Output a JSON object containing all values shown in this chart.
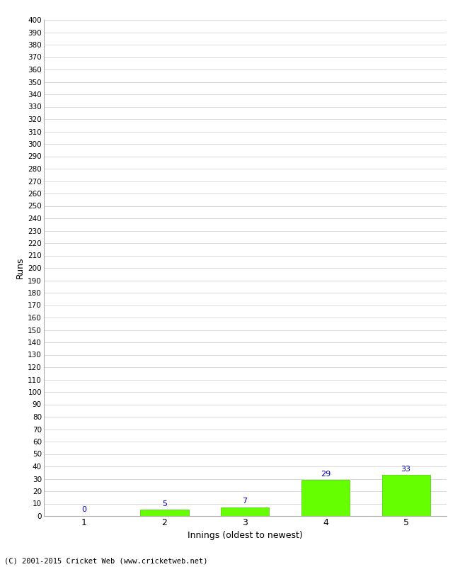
{
  "xlabel": "Innings (oldest to newest)",
  "ylabel": "Runs",
  "categories": [
    1,
    2,
    3,
    4,
    5
  ],
  "values": [
    0,
    5,
    7,
    29,
    33
  ],
  "bar_color": "#66ff00",
  "bar_edge_color": "#44cc00",
  "label_color": "#0000cc",
  "ylim": [
    0,
    400
  ],
  "ytick_step": 10,
  "background_color": "#ffffff",
  "grid_color": "#cccccc",
  "footer": "(C) 2001-2015 Cricket Web (www.cricketweb.net)"
}
